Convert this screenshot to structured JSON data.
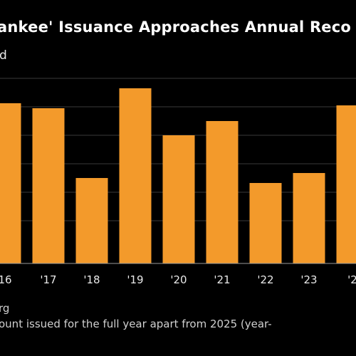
{
  "chart_data": {
    "type": "bar",
    "title": "ankee' Issuance Approaches Annual Reco",
    "subtitle": "d",
    "categories": [
      "16",
      "'17",
      "'18",
      "'19",
      "'20",
      "'21",
      "'22",
      "'23",
      "'2"
    ],
    "values": [
      225,
      218,
      120,
      246,
      180,
      200,
      113,
      127,
      222
    ],
    "ylim": [
      0,
      270
    ],
    "grid": true,
    "bar_color": "#f39a2b",
    "grid_color": "#3a3a3a",
    "source": "rg",
    "note": "ount issued for the full year apart from 2025 (year-"
  }
}
